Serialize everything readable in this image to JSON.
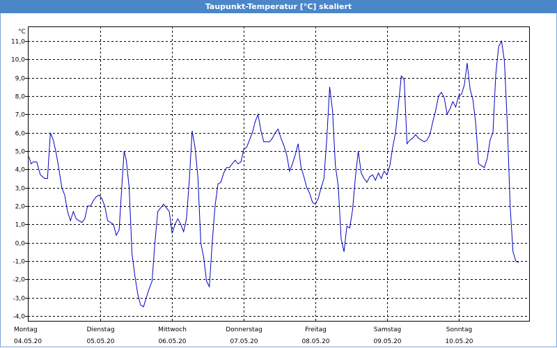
{
  "window": {
    "title": "Taupunkt-Temperatur [°C] skaliert"
  },
  "colors": {
    "titlebar": "#4a86c8",
    "line": "#0000c0",
    "grid": "#000000"
  },
  "chart_data": {
    "type": "line",
    "title": "Taupunkt-Temperatur [°C] skaliert",
    "ylabel": "°C",
    "xlabel": "",
    "ylim": [
      -4.0,
      11.0
    ],
    "yticks": [
      "11,0",
      "10,0",
      "9,0",
      "8,0",
      "7,0",
      "6,0",
      "5,0",
      "4,0",
      "3,0",
      "2,0",
      "1,0",
      "0,0",
      "-1,0",
      "-2,0",
      "-3,0",
      "-4,0"
    ],
    "xlim": [
      0,
      7
    ],
    "grid": true,
    "categories": [
      {
        "day": "Montag",
        "date": "04.05.20"
      },
      {
        "day": "Dienstag",
        "date": "05.05.20"
      },
      {
        "day": "Mittwoch",
        "date": "06.05.20"
      },
      {
        "day": "Donnerstag",
        "date": "07.05.20"
      },
      {
        "day": "Freitag",
        "date": "08.05.20"
      },
      {
        "day": "Samstag",
        "date": "09.05.20"
      },
      {
        "day": "Sonntag",
        "date": "10.05.20"
      }
    ],
    "series": [
      {
        "values": [
          [
            0.0,
            4.7
          ],
          [
            0.03,
            4.3
          ],
          [
            0.06,
            4.4
          ],
          [
            0.11,
            4.4
          ],
          [
            0.16,
            3.7
          ],
          [
            0.22,
            3.5
          ],
          [
            0.26,
            3.5
          ],
          [
            0.3,
            6.0
          ],
          [
            0.34,
            5.6
          ],
          [
            0.38,
            4.9
          ],
          [
            0.42,
            4.0
          ],
          [
            0.46,
            3.0
          ],
          [
            0.5,
            2.6
          ],
          [
            0.54,
            1.7
          ],
          [
            0.58,
            1.2
          ],
          [
            0.62,
            1.7
          ],
          [
            0.66,
            1.3
          ],
          [
            0.7,
            1.2
          ],
          [
            0.74,
            1.1
          ],
          [
            0.78,
            1.3
          ],
          [
            0.82,
            2.0
          ],
          [
            0.86,
            2.0
          ],
          [
            0.9,
            2.3
          ],
          [
            0.94,
            2.5
          ],
          [
            0.98,
            2.6
          ],
          [
            1.02,
            2.4
          ],
          [
            1.06,
            2.0
          ],
          [
            1.1,
            1.2
          ],
          [
            1.14,
            1.1
          ],
          [
            1.18,
            1.0
          ],
          [
            1.22,
            0.4
          ],
          [
            1.26,
            0.7
          ],
          [
            1.3,
            3.2
          ],
          [
            1.33,
            5.0
          ],
          [
            1.36,
            4.5
          ],
          [
            1.4,
            3.0
          ],
          [
            1.44,
            -0.6
          ],
          [
            1.48,
            -1.8
          ],
          [
            1.52,
            -2.8
          ],
          [
            1.56,
            -3.4
          ],
          [
            1.6,
            -3.5
          ],
          [
            1.64,
            -3.0
          ],
          [
            1.68,
            -2.5
          ],
          [
            1.72,
            -2.1
          ],
          [
            1.76,
            0.0
          ],
          [
            1.8,
            1.7
          ],
          [
            1.84,
            1.9
          ],
          [
            1.88,
            2.1
          ],
          [
            1.92,
            1.9
          ],
          [
            1.96,
            1.7
          ],
          [
            2.0,
            0.5
          ],
          [
            2.04,
            1.0
          ],
          [
            2.08,
            1.3
          ],
          [
            2.12,
            1.0
          ],
          [
            2.16,
            0.6
          ],
          [
            2.2,
            1.3
          ],
          [
            2.24,
            3.4
          ],
          [
            2.28,
            6.1
          ],
          [
            2.32,
            5.2
          ],
          [
            2.36,
            3.6
          ],
          [
            2.4,
            0.0
          ],
          [
            2.44,
            -0.8
          ],
          [
            2.48,
            -2.1
          ],
          [
            2.52,
            -2.4
          ],
          [
            2.56,
            0.0
          ],
          [
            2.6,
            2.0
          ],
          [
            2.64,
            3.2
          ],
          [
            2.68,
            3.3
          ],
          [
            2.72,
            3.8
          ],
          [
            2.76,
            4.1
          ],
          [
            2.8,
            4.1
          ],
          [
            2.84,
            4.3
          ],
          [
            2.88,
            4.5
          ],
          [
            2.92,
            4.3
          ],
          [
            2.96,
            4.4
          ],
          [
            3.0,
            5.1
          ],
          [
            3.04,
            5.2
          ],
          [
            3.08,
            5.6
          ],
          [
            3.12,
            6.0
          ],
          [
            3.16,
            6.6
          ],
          [
            3.2,
            7.0
          ],
          [
            3.24,
            6.1
          ],
          [
            3.28,
            5.5
          ],
          [
            3.32,
            5.5
          ],
          [
            3.36,
            5.5
          ],
          [
            3.4,
            5.7
          ],
          [
            3.44,
            6.0
          ],
          [
            3.48,
            6.2
          ],
          [
            3.52,
            5.7
          ],
          [
            3.56,
            5.3
          ],
          [
            3.6,
            4.8
          ],
          [
            3.64,
            3.9
          ],
          [
            3.68,
            4.3
          ],
          [
            3.72,
            4.8
          ],
          [
            3.76,
            5.4
          ],
          [
            3.8,
            4.1
          ],
          [
            3.84,
            3.6
          ],
          [
            3.88,
            3.0
          ],
          [
            3.92,
            2.7
          ],
          [
            3.96,
            2.2
          ],
          [
            4.0,
            2.1
          ],
          [
            4.04,
            2.4
          ],
          [
            4.08,
            3.0
          ],
          [
            4.12,
            3.5
          ],
          [
            4.16,
            5.7
          ],
          [
            4.2,
            8.5
          ],
          [
            4.24,
            7.2
          ],
          [
            4.28,
            4.2
          ],
          [
            4.32,
            3.1
          ],
          [
            4.36,
            0.2
          ],
          [
            4.4,
            -0.5
          ],
          [
            4.44,
            0.9
          ],
          [
            4.48,
            0.8
          ],
          [
            4.52,
            1.8
          ],
          [
            4.56,
            3.6
          ],
          [
            4.6,
            5.0
          ],
          [
            4.64,
            3.8
          ],
          [
            4.68,
            3.5
          ],
          [
            4.72,
            3.3
          ],
          [
            4.76,
            3.6
          ],
          [
            4.8,
            3.7
          ],
          [
            4.84,
            3.4
          ],
          [
            4.88,
            3.8
          ],
          [
            4.92,
            3.5
          ],
          [
            4.96,
            3.9
          ],
          [
            5.0,
            3.7
          ],
          [
            5.04,
            4.2
          ],
          [
            5.08,
            5.2
          ],
          [
            5.12,
            6.0
          ],
          [
            5.16,
            7.5
          ],
          [
            5.2,
            9.1
          ],
          [
            5.24,
            8.9
          ],
          [
            5.28,
            5.4
          ],
          [
            5.32,
            5.6
          ],
          [
            5.36,
            5.7
          ],
          [
            5.4,
            5.9
          ],
          [
            5.44,
            5.7
          ],
          [
            5.48,
            5.6
          ],
          [
            5.52,
            5.5
          ],
          [
            5.56,
            5.6
          ],
          [
            5.6,
            5.9
          ],
          [
            5.64,
            6.6
          ],
          [
            5.68,
            7.2
          ],
          [
            5.72,
            8.0
          ],
          [
            5.76,
            8.2
          ],
          [
            5.8,
            7.9
          ],
          [
            5.84,
            7.0
          ],
          [
            5.88,
            7.3
          ],
          [
            5.92,
            7.7
          ],
          [
            5.96,
            7.4
          ],
          [
            6.0,
            8.0
          ],
          [
            6.04,
            8.1
          ],
          [
            6.08,
            8.6
          ],
          [
            6.12,
            9.8
          ],
          [
            6.16,
            8.4
          ],
          [
            6.2,
            7.8
          ],
          [
            6.24,
            6.5
          ],
          [
            6.28,
            4.3
          ],
          [
            6.32,
            4.2
          ],
          [
            6.36,
            4.1
          ],
          [
            6.4,
            4.6
          ],
          [
            6.44,
            5.6
          ],
          [
            6.48,
            6.0
          ],
          [
            6.52,
            9.2
          ],
          [
            6.56,
            10.7
          ],
          [
            6.6,
            11.0
          ],
          [
            6.64,
            9.9
          ],
          [
            6.68,
            6.5
          ],
          [
            6.72,
            2.0
          ],
          [
            6.76,
            -0.5
          ],
          [
            6.8,
            -1.0
          ],
          [
            6.84,
            -1.1
          ]
        ]
      }
    ]
  }
}
